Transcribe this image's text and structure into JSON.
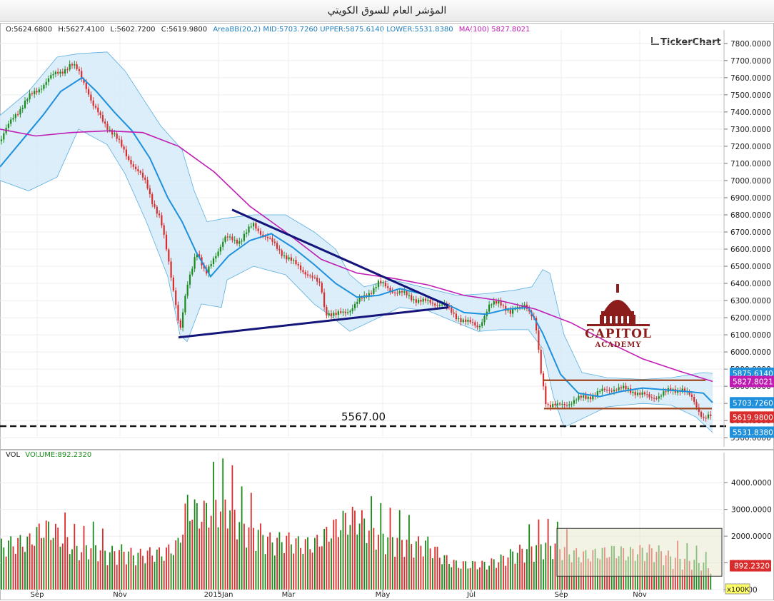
{
  "window": {
    "title": "المؤشر العام للسوق الكويتي"
  },
  "ohlc": {
    "open": "O:5624.6800",
    "high": "H:5627.4100",
    "low": "L:5602.7200",
    "close": "C:5619.9800"
  },
  "indicators": {
    "bb": "AreaBB(20,2) MID:5703.7260 UPPER:5875.6140 LOWER:5531.8380",
    "ma": "MA(100) 5827.8021"
  },
  "watermark": "TickerChart",
  "logo": {
    "line1": "CAPITOL",
    "line2": "ACADEMY"
  },
  "volume_panel": {
    "label": "VOL",
    "value": "VOLUME:892.2320",
    "unit_badge": "x100K"
  },
  "colors": {
    "up": "#1a8a1a",
    "down": "#d92c2c",
    "mid": "#1e90dc",
    "band_fill": "#d6ebf8",
    "band_line": "#5aaee0",
    "ma": "#c01cb4",
    "trend": "#14147a",
    "range": "#a0461e"
  },
  "chart_data": [
    {
      "type": "line",
      "title": "المؤشر العام للسوق الكويتي",
      "x_ticks": [
        "Sep",
        "Nov",
        "2015Jan",
        "Mar",
        "May",
        "Jul",
        "Sep",
        "Nov"
      ],
      "y_ticks": [
        "7800.0000",
        "7700.0000",
        "7600.0000",
        "7500.0000",
        "7400.0000",
        "7300.0000",
        "7200.0000",
        "7100.0000",
        "7000.0000",
        "6900.0000",
        "6800.0000",
        "6700.0000",
        "6600.0000",
        "6500.0000",
        "6400.0000",
        "6300.0000",
        "6200.0000",
        "6100.0000",
        "6000.0000",
        "5900.0000",
        "5800.0000",
        "5700.0000",
        "5600.0000",
        "5500.0000"
      ],
      "ylim": [
        5460,
        7840
      ],
      "grid": true,
      "close_path": [
        [
          0,
          7230
        ],
        [
          20,
          7380
        ],
        [
          40,
          7480
        ],
        [
          60,
          7560
        ],
        [
          80,
          7630
        ],
        [
          100,
          7670
        ],
        [
          110,
          7640
        ],
        [
          120,
          7560
        ],
        [
          130,
          7430
        ],
        [
          145,
          7350
        ],
        [
          160,
          7260
        ],
        [
          175,
          7170
        ],
        [
          190,
          7060
        ],
        [
          205,
          6990
        ],
        [
          215,
          6860
        ],
        [
          225,
          6760
        ],
        [
          235,
          6560
        ],
        [
          245,
          6320
        ],
        [
          252,
          6110
        ],
        [
          262,
          6380
        ],
        [
          275,
          6600
        ],
        [
          288,
          6440
        ],
        [
          300,
          6560
        ],
        [
          315,
          6660
        ],
        [
          335,
          6650
        ],
        [
          355,
          6740
        ],
        [
          370,
          6680
        ],
        [
          390,
          6600
        ],
        [
          410,
          6520
        ],
        [
          430,
          6460
        ],
        [
          450,
          6380
        ],
        [
          455,
          6240
        ],
        [
          470,
          6210
        ],
        [
          490,
          6250
        ],
        [
          510,
          6320
        ],
        [
          530,
          6400
        ],
        [
          550,
          6360
        ],
        [
          575,
          6320
        ],
        [
          595,
          6290
        ],
        [
          620,
          6280
        ],
        [
          635,
          6220
        ],
        [
          655,
          6170
        ],
        [
          670,
          6150
        ],
        [
          685,
          6260
        ],
        [
          700,
          6300
        ],
        [
          715,
          6220
        ],
        [
          735,
          6290
        ],
        [
          750,
          6160
        ],
        [
          757,
          5900
        ],
        [
          765,
          5700
        ],
        [
          780,
          5680
        ],
        [
          800,
          5710
        ],
        [
          830,
          5750
        ],
        [
          860,
          5790
        ],
        [
          890,
          5770
        ],
        [
          910,
          5730
        ],
        [
          930,
          5760
        ],
        [
          955,
          5790
        ],
        [
          970,
          5720
        ],
        [
          985,
          5620
        ],
        [
          997,
          5620
        ]
      ],
      "mid_path": [
        [
          0,
          7080
        ],
        [
          30,
          7230
        ],
        [
          60,
          7380
        ],
        [
          85,
          7520
        ],
        [
          115,
          7600
        ],
        [
          135,
          7520
        ],
        [
          160,
          7400
        ],
        [
          185,
          7290
        ],
        [
          210,
          7130
        ],
        [
          235,
          6900
        ],
        [
          255,
          6760
        ],
        [
          275,
          6580
        ],
        [
          295,
          6440
        ],
        [
          320,
          6560
        ],
        [
          350,
          6650
        ],
        [
          380,
          6690
        ],
        [
          410,
          6610
        ],
        [
          440,
          6510
        ],
        [
          470,
          6400
        ],
        [
          500,
          6320
        ],
        [
          530,
          6330
        ],
        [
          560,
          6370
        ],
        [
          590,
          6340
        ],
        [
          620,
          6290
        ],
        [
          650,
          6230
        ],
        [
          680,
          6220
        ],
        [
          710,
          6250
        ],
        [
          740,
          6260
        ],
        [
          760,
          6110
        ],
        [
          785,
          5870
        ],
        [
          810,
          5760
        ],
        [
          840,
          5740
        ],
        [
          870,
          5770
        ],
        [
          900,
          5790
        ],
        [
          930,
          5780
        ],
        [
          960,
          5770
        ],
        [
          985,
          5760
        ],
        [
          998,
          5705
        ]
      ],
      "upper_path": [
        [
          0,
          7380
        ],
        [
          40,
          7520
        ],
        [
          80,
          7720
        ],
        [
          110,
          7740
        ],
        [
          150,
          7750
        ],
        [
          175,
          7640
        ],
        [
          200,
          7480
        ],
        [
          225,
          7320
        ],
        [
          255,
          7180
        ],
        [
          272,
          6940
        ],
        [
          290,
          6760
        ],
        [
          315,
          6780
        ],
        [
          355,
          6800
        ],
        [
          400,
          6800
        ],
        [
          440,
          6700
        ],
        [
          470,
          6600
        ],
        [
          490,
          6450
        ],
        [
          510,
          6380
        ],
        [
          550,
          6420
        ],
        [
          600,
          6370
        ],
        [
          640,
          6330
        ],
        [
          680,
          6340
        ],
        [
          720,
          6360
        ],
        [
          745,
          6380
        ],
        [
          760,
          6480
        ],
        [
          770,
          6460
        ],
        [
          790,
          6100
        ],
        [
          815,
          5880
        ],
        [
          850,
          5850
        ],
        [
          900,
          5840
        ],
        [
          940,
          5850
        ],
        [
          985,
          5880
        ],
        [
          998,
          5875
        ]
      ],
      "lower_path": [
        [
          0,
          7000
        ],
        [
          40,
          6940
        ],
        [
          80,
          7020
        ],
        [
          110,
          7300
        ],
        [
          150,
          7210
        ],
        [
          175,
          7040
        ],
        [
          205,
          6760
        ],
        [
          235,
          6440
        ],
        [
          252,
          6100
        ],
        [
          262,
          6060
        ],
        [
          282,
          6280
        ],
        [
          310,
          6260
        ],
        [
          318,
          6420
        ],
        [
          355,
          6500
        ],
        [
          400,
          6450
        ],
        [
          440,
          6280
        ],
        [
          460,
          6220
        ],
        [
          490,
          6120
        ],
        [
          530,
          6200
        ],
        [
          560,
          6260
        ],
        [
          600,
          6240
        ],
        [
          640,
          6170
        ],
        [
          670,
          6120
        ],
        [
          700,
          6130
        ],
        [
          740,
          6130
        ],
        [
          760,
          6020
        ],
        [
          775,
          5740
        ],
        [
          790,
          5560
        ],
        [
          810,
          5600
        ],
        [
          850,
          5680
        ],
        [
          900,
          5700
        ],
        [
          940,
          5690
        ],
        [
          975,
          5620
        ],
        [
          998,
          5530
        ]
      ],
      "ma100_path": [
        [
          0,
          7300
        ],
        [
          50,
          7260
        ],
        [
          100,
          7280
        ],
        [
          150,
          7290
        ],
        [
          200,
          7280
        ],
        [
          250,
          7200
        ],
        [
          300,
          7050
        ],
        [
          350,
          6850
        ],
        [
          400,
          6700
        ],
        [
          450,
          6540
        ],
        [
          500,
          6460
        ],
        [
          550,
          6430
        ],
        [
          600,
          6390
        ],
        [
          650,
          6330
        ],
        [
          700,
          6300
        ],
        [
          750,
          6250
        ],
        [
          800,
          6170
        ],
        [
          850,
          6060
        ],
        [
          900,
          5960
        ],
        [
          950,
          5890
        ],
        [
          998,
          5828
        ]
      ],
      "support_line": {
        "value": 5567,
        "label": "5567.00"
      },
      "triangle_lines": [
        {
          "from": [
            325,
            6830
          ],
          "to": [
            628,
            6270
          ]
        },
        {
          "from": [
            250,
            6085
          ],
          "to": [
            628,
            6260
          ]
        }
      ],
      "range_lines": [
        {
          "from": [
            760,
            5835
          ],
          "to": [
            988,
            5835
          ]
        },
        {
          "from": [
            762,
            5670
          ],
          "to": [
            997,
            5670
          ]
        }
      ],
      "price_tags": [
        {
          "label": "5875.6140",
          "value": 5875.614,
          "color": "#1e90dc"
        },
        {
          "label": "5827.8021",
          "value": 5827.8021,
          "color": "#c01cb4"
        },
        {
          "label": "5703.7260",
          "value": 5703.726,
          "color": "#1e90dc"
        },
        {
          "label": "5619.9800",
          "value": 5619.98,
          "color": "#d92c2c"
        },
        {
          "label": "5531.8380",
          "value": 5531.838,
          "color": "#1e90dc"
        }
      ]
    },
    {
      "type": "bar",
      "series": [
        {
          "name": "VOLUME",
          "last": 892.232
        }
      ],
      "y_ticks": [
        "4000.0000",
        "3000.0000",
        "2000.0000",
        "1000.0000",
        "0.0000"
      ],
      "ylim": [
        0,
        4600
      ],
      "volume_profile": [
        [
          0,
          1900
        ],
        [
          20,
          2050
        ],
        [
          40,
          2100
        ],
        [
          60,
          2700
        ],
        [
          75,
          2600
        ],
        [
          90,
          2200
        ],
        [
          110,
          1700
        ],
        [
          130,
          1900
        ],
        [
          150,
          1600
        ],
        [
          170,
          1700
        ],
        [
          190,
          1500
        ],
        [
          210,
          1600
        ],
        [
          230,
          1600
        ],
        [
          250,
          2000
        ],
        [
          262,
          3700
        ],
        [
          280,
          3300
        ],
        [
          300,
          3600
        ],
        [
          320,
          3700
        ],
        [
          340,
          2800
        ],
        [
          360,
          2600
        ],
        [
          380,
          2100
        ],
        [
          400,
          2200
        ],
        [
          420,
          2000
        ],
        [
          440,
          2000
        ],
        [
          460,
          2500
        ],
        [
          480,
          3000
        ],
        [
          500,
          3200
        ],
        [
          520,
          2600
        ],
        [
          540,
          2300
        ],
        [
          560,
          2200
        ],
        [
          580,
          2000
        ],
        [
          600,
          2000
        ],
        [
          620,
          1400
        ],
        [
          640,
          1100
        ],
        [
          660,
          1100
        ],
        [
          680,
          1100
        ],
        [
          700,
          1300
        ],
        [
          720,
          1600
        ],
        [
          740,
          1800
        ],
        [
          760,
          2000
        ],
        [
          780,
          1900
        ],
        [
          800,
          1600
        ],
        [
          820,
          1500
        ],
        [
          840,
          1600
        ],
        [
          860,
          1700
        ],
        [
          880,
          1600
        ],
        [
          900,
          1700
        ],
        [
          920,
          1700
        ],
        [
          940,
          1400
        ],
        [
          960,
          1300
        ],
        [
          980,
          1200
        ],
        [
          998,
          892
        ]
      ],
      "highlight_box": {
        "from": [
          780,
          2290
        ],
        "to": [
          1011,
          500
        ]
      },
      "tag": {
        "label": "892.2320",
        "value": 892.232
      }
    }
  ]
}
